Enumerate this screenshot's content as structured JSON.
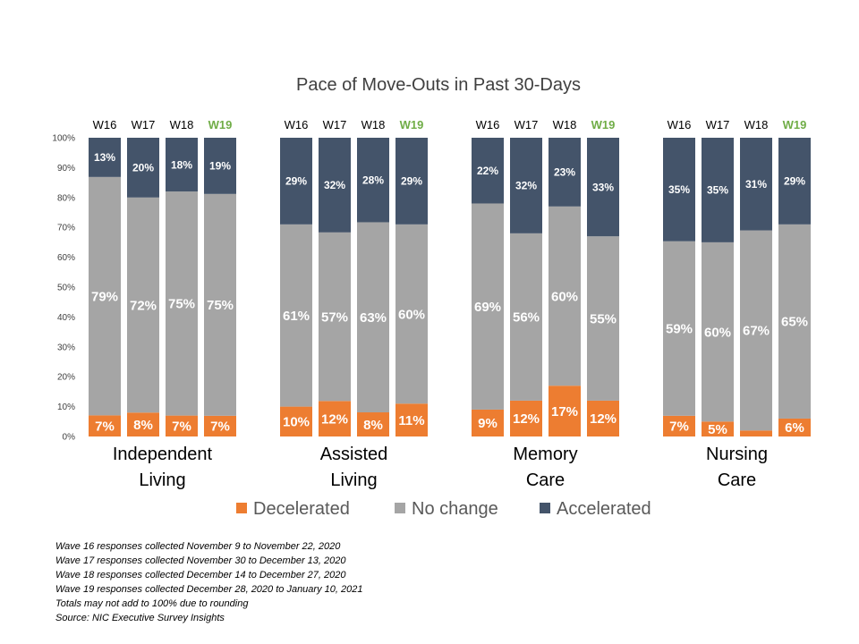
{
  "chart_data": {
    "type": "bar",
    "stacked": true,
    "title": "Pace of Move-Outs in Past 30-Days",
    "y_ticks": [
      "0%",
      "10%",
      "20%",
      "30%",
      "40%",
      "50%",
      "60%",
      "70%",
      "80%",
      "90%",
      "100%"
    ],
    "ylim": [
      0,
      100
    ],
    "legend_position": "bottom",
    "series": [
      {
        "name": "Decelerated",
        "color": "#ed7d31"
      },
      {
        "name": "No change",
        "color": "#a5a5a5"
      },
      {
        "name": "Accelerated",
        "color": "#44546a"
      }
    ],
    "groups": [
      {
        "label_lines": [
          "Independent",
          "Living"
        ],
        "bars": [
          {
            "wave": "W16",
            "highlight": false,
            "values": [
              7,
              79,
              13
            ],
            "labels": [
              "7%",
              "79%",
              "13%"
            ]
          },
          {
            "wave": "W17",
            "highlight": false,
            "values": [
              8,
              72,
              20
            ],
            "labels": [
              "8%",
              "72%",
              "20%"
            ]
          },
          {
            "wave": "W18",
            "highlight": false,
            "values": [
              7,
              75,
              18
            ],
            "labels": [
              "7%",
              "75%",
              "18%"
            ]
          },
          {
            "wave": "W19",
            "highlight": true,
            "values": [
              7,
              75,
              19
            ],
            "labels": [
              "7%",
              "75%",
              "19%"
            ]
          }
        ]
      },
      {
        "label_lines": [
          "Assisted",
          "Living"
        ],
        "bars": [
          {
            "wave": "W16",
            "highlight": false,
            "values": [
              10,
              61,
              29
            ],
            "labels": [
              "10%",
              "61%",
              "29%"
            ]
          },
          {
            "wave": "W17",
            "highlight": false,
            "values": [
              12,
              57,
              32
            ],
            "labels": [
              "12%",
              "57%",
              "32%"
            ]
          },
          {
            "wave": "W18",
            "highlight": false,
            "values": [
              8,
              63,
              28
            ],
            "labels": [
              "8%",
              "63%",
              "28%"
            ]
          },
          {
            "wave": "W19",
            "highlight": true,
            "values": [
              11,
              60,
              29
            ],
            "labels": [
              "11%",
              "60%",
              "29%"
            ]
          }
        ]
      },
      {
        "label_lines": [
          "Memory",
          "Care"
        ],
        "bars": [
          {
            "wave": "W16",
            "highlight": false,
            "values": [
              9,
              69,
              22
            ],
            "labels": [
              "9%",
              "69%",
              "22%"
            ]
          },
          {
            "wave": "W17",
            "highlight": false,
            "values": [
              12,
              56,
              32
            ],
            "labels": [
              "12%",
              "56%",
              "32%"
            ]
          },
          {
            "wave": "W18",
            "highlight": false,
            "values": [
              17,
              60,
              23
            ],
            "labels": [
              "17%",
              "60%",
              "23%"
            ]
          },
          {
            "wave": "W19",
            "highlight": true,
            "values": [
              12,
              55,
              33
            ],
            "labels": [
              "12%",
              "55%",
              "33%"
            ]
          }
        ]
      },
      {
        "label_lines": [
          "Nursing",
          "Care"
        ],
        "bars": [
          {
            "wave": "W16",
            "highlight": false,
            "values": [
              7,
              59,
              35
            ],
            "labels": [
              "7%",
              "59%",
              "35%"
            ]
          },
          {
            "wave": "W17",
            "highlight": false,
            "values": [
              5,
              60,
              35
            ],
            "labels": [
              "5%",
              "60%",
              "35%"
            ]
          },
          {
            "wave": "W18",
            "highlight": false,
            "values": [
              2,
              67,
              31
            ],
            "labels": [
              "",
              "67%",
              "31%"
            ]
          },
          {
            "wave": "W19",
            "highlight": true,
            "values": [
              6,
              65,
              29
            ],
            "labels": [
              "6%",
              "65%",
              "29%"
            ]
          }
        ]
      }
    ]
  },
  "notes": [
    "Wave 16 responses collected  November 9 to November 22, 2020",
    "Wave 17 responses collected  November 30 to  December 13, 2020",
    "Wave 18 responses collected  December 14 to December 27, 2020",
    "Wave 19 responses collected  December 28, 2020 to January 10, 2021",
    "Totals may not add to 100% due to rounding",
    "Source: NIC Executive Survey Insights"
  ]
}
